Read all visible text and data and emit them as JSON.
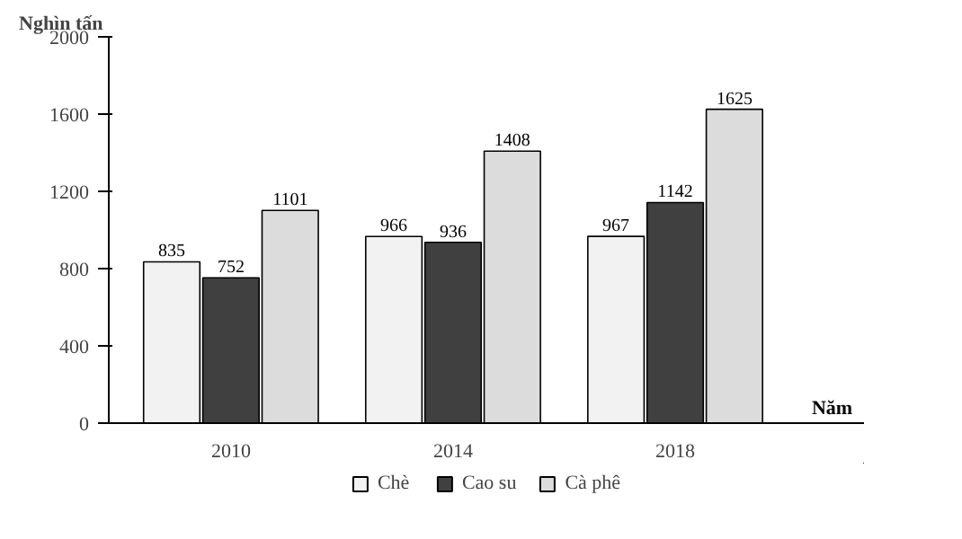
{
  "chart_data": {
    "type": "bar",
    "ylabel": "Nghìn tấn",
    "xlabel": "Năm",
    "categories": [
      "2010",
      "2014",
      "2018"
    ],
    "series": [
      {
        "name": "Chè",
        "color": "#f2f2f2",
        "values": [
          835,
          966,
          967
        ]
      },
      {
        "name": "Cao su",
        "color": "#404040",
        "values": [
          752,
          936,
          1142
        ]
      },
      {
        "name": "Cà phê",
        "color": "#dcdcdc",
        "values": [
          1101,
          1408,
          1625
        ]
      }
    ],
    "ylim": [
      0,
      2000
    ],
    "yticks": [
      0,
      400,
      800,
      1200,
      1600,
      2000
    ],
    "grid": false,
    "legend": "bottom",
    "data_labels": true
  }
}
